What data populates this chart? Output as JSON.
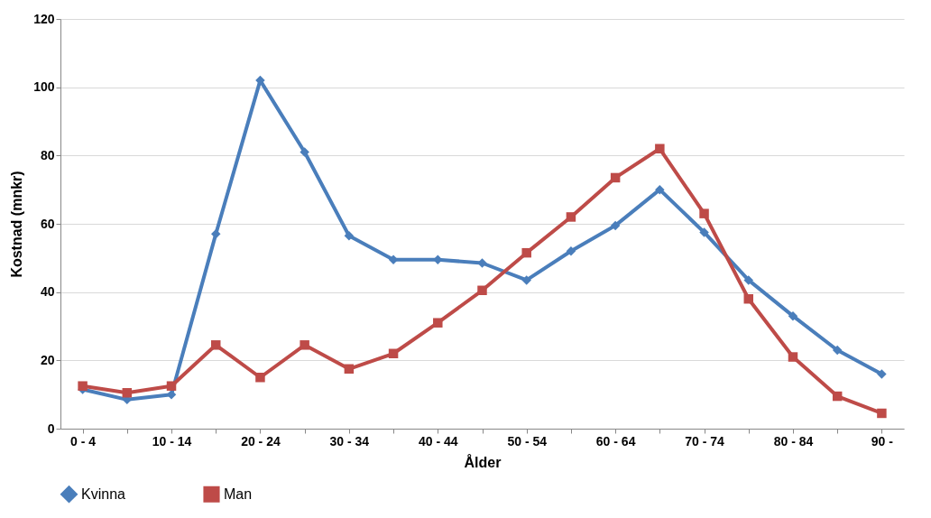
{
  "chart_data": {
    "type": "line",
    "xlabel": "Ålder",
    "ylabel": "Kostnad (mnkr)",
    "categories": [
      "0 - 4",
      null,
      "10 - 14",
      null,
      "20 - 24",
      null,
      "30 - 34",
      null,
      "40 - 44",
      null,
      "50 - 54",
      null,
      "60 - 64",
      null,
      "70 - 74",
      null,
      "80 - 84",
      null,
      "90 -"
    ],
    "series": [
      {
        "name": "Kvinna",
        "color": "#4a7ebb",
        "marker": "diamond",
        "values": [
          11.5,
          8.5,
          10,
          57,
          102,
          81,
          56.5,
          49.5,
          49.5,
          48.5,
          43.5,
          52,
          59.5,
          70,
          57.5,
          43.5,
          33,
          23,
          16
        ]
      },
      {
        "name": "Man",
        "color": "#be4b48",
        "marker": "square",
        "values": [
          12.5,
          10.5,
          12.5,
          24.5,
          15,
          24.5,
          17.5,
          22,
          31,
          40.5,
          51.5,
          62,
          73.5,
          82,
          63,
          38,
          21,
          9.5,
          4.5
        ]
      }
    ],
    "ylim": [
      0,
      120
    ],
    "yticks": [
      0,
      20,
      40,
      60,
      80,
      100,
      120
    ],
    "grid": "y",
    "legend": "bottom"
  }
}
